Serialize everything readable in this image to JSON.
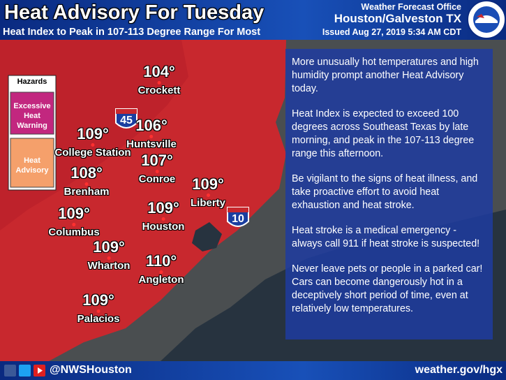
{
  "header": {
    "title": "Heat Advisory For Tuesday",
    "subtitle": "Heat Index to Peak in 107-113 Degree Range For Most",
    "office": "Weather Forecast Office",
    "location": "Houston/Galveston TX",
    "issued": "Issued Aug 27, 2019 5:34 AM CDT"
  },
  "legend": {
    "title": "Hazards",
    "items": [
      "Excessive Heat Warning",
      "Heat Advisory"
    ]
  },
  "highways": [
    "45",
    "10"
  ],
  "cities": [
    {
      "name": "Crockett",
      "temp": "104°"
    },
    {
      "name": "Huntsville",
      "temp": "106°"
    },
    {
      "name": "Conroe",
      "temp": "107°"
    },
    {
      "name": "Liberty",
      "temp": "109°"
    },
    {
      "name": "Houston",
      "temp": "109°"
    },
    {
      "name": "Angleton",
      "temp": "110°"
    },
    {
      "name": "Wharton",
      "temp": "109°"
    },
    {
      "name": "Palacios",
      "temp": "109°"
    },
    {
      "name": "Columbus",
      "temp": "109°"
    },
    {
      "name": "Brenham",
      "temp": "108°"
    },
    {
      "name": "College Station",
      "temp": "109°"
    }
  ],
  "info": [
    "More unusually hot temperatures and high humidity prompt another Heat Advisory today.",
    "Heat Index is expected to exceed 100 degrees across Southeast Texas by late morning, and peak in the 107-113 degree range this afternoon.",
    "Be vigilant to the signs of heat illness, and take proactive effort to avoid heat exhaustion and heat stroke.",
    "Heat stroke is a medical emergency - always call 911 if heat stroke is suspected!",
    "Never leave pets or people in a parked car! Cars can become dangerously hot in a deceptively short period of time, even at relatively low temperatures."
  ],
  "footer": {
    "handle": "@NWSHouston",
    "url": "weather.gov/hgx"
  }
}
